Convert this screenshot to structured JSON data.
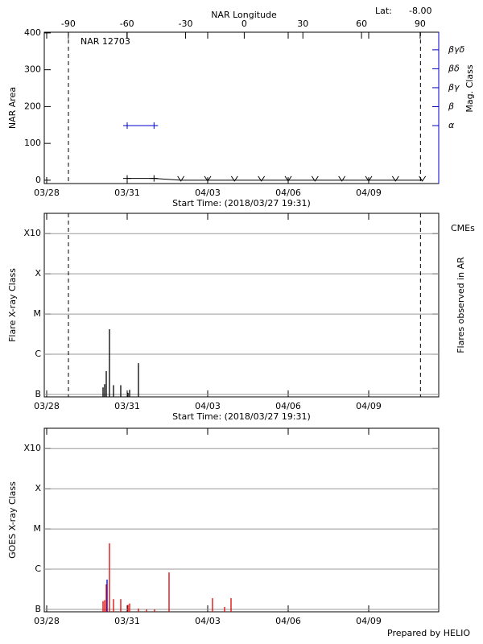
{
  "chart_data": [
    {
      "type": "line",
      "title": "NAR 12703",
      "annotations": [
        "Lat:",
        "-8.00"
      ],
      "ylabel": "NAR Area",
      "y2label": "Mag. Class",
      "x2label": "NAR Longitude",
      "xlabel": "Start Time: (2018/03/27 19:31)",
      "xlim": [
        -0.09,
        14.61
      ],
      "xticks": [
        {
          "value": 0,
          "label": "03/28"
        },
        {
          "value": 3,
          "label": "03/31"
        },
        {
          "value": 6,
          "label": "04/03"
        },
        {
          "value": 9,
          "label": "04/06"
        },
        {
          "value": 12,
          "label": "04/09"
        }
      ],
      "x2lim": [
        -102.3,
        99.5
      ],
      "x2ticks": [
        -90,
        -60,
        -30,
        0,
        30,
        60,
        90
      ],
      "ylim": [
        -9,
        402
      ],
      "yticks": [
        0,
        100,
        200,
        300,
        400
      ],
      "y2lim": [
        -2.06,
        5.93
      ],
      "y2ticks": [
        {
          "value": 1,
          "label": "α"
        },
        {
          "value": 2,
          "label": "β"
        },
        {
          "value": 3,
          "label": "βγ"
        },
        {
          "value": 4,
          "label": "βδ"
        },
        {
          "value": 5,
          "label": "βγδ"
        }
      ],
      "vlines": [
        0.81,
        13.93
      ],
      "series": [
        {
          "color": "#000000",
          "x": [
            3,
            4,
            5,
            6,
            7,
            8,
            9,
            10,
            11,
            12,
            13,
            14
          ],
          "values": [
            5,
            5,
            0,
            0,
            0,
            0,
            0,
            0,
            0,
            0,
            0,
            0
          ],
          "markers": [
            "+",
            "+",
            "v",
            "v",
            "v",
            "v",
            "v",
            "v",
            "v",
            "v",
            "v",
            "v"
          ]
        },
        {
          "color": "#0000cc",
          "axis": "y2",
          "x": [
            3,
            4
          ],
          "values": [
            1,
            1
          ],
          "markers": [
            "+",
            "+"
          ]
        }
      ]
    },
    {
      "type": "bar",
      "ylabel": "Flare X-ray Class",
      "y2label": "Flares observed in AR",
      "annotations": [
        "CMEs"
      ],
      "xlabel": "Start Time: (2018/03/27 19:31)",
      "xlim": [
        -0.09,
        14.61
      ],
      "xticks": [
        {
          "value": 0,
          "label": "03/28"
        },
        {
          "value": 3,
          "label": "03/31"
        },
        {
          "value": 6,
          "label": "04/03"
        },
        {
          "value": 9,
          "label": "04/06"
        },
        {
          "value": 12,
          "label": "04/09"
        }
      ],
      "log": true,
      "ylim": [
        8.7e-08,
        0.0032
      ],
      "yticks": [
        {
          "value": 1e-07,
          "label": "B"
        },
        {
          "value": 1e-06,
          "label": "C"
        },
        {
          "value": 1e-05,
          "label": "M"
        },
        {
          "value": 0.0001,
          "label": "X"
        },
        {
          "value": 0.001,
          "label": "X10"
        }
      ],
      "grid": true,
      "vlines": [
        0.81,
        13.93
      ],
      "series": [
        {
          "color": "#000000",
          "x": [
            2.1,
            2.16,
            2.22,
            2.34,
            2.49,
            2.76,
            3.03,
            3.09,
            3.42
          ],
          "values": [
            1.5e-07,
            1.8e-07,
            3.8e-07,
            4.2e-06,
            1.7e-07,
            1.7e-07,
            1.1e-07,
            1.3e-07,
            6e-07
          ]
        }
      ]
    },
    {
      "type": "bar",
      "ylabel": "GOES X-ray Class",
      "annotations": [
        "Prepared by HELIO"
      ],
      "xlim": [
        -0.09,
        14.61
      ],
      "xticks": [
        {
          "value": 0,
          "label": "03/28"
        },
        {
          "value": 3,
          "label": "03/31"
        },
        {
          "value": 6,
          "label": "04/03"
        },
        {
          "value": 9,
          "label": "04/06"
        },
        {
          "value": 12,
          "label": "04/09"
        }
      ],
      "log": true,
      "ylim": [
        8.7e-08,
        0.0032
      ],
      "yticks": [
        {
          "value": 1e-07,
          "label": "B"
        },
        {
          "value": 1e-06,
          "label": "C"
        },
        {
          "value": 1e-05,
          "label": "M"
        },
        {
          "value": 0.0001,
          "label": "X"
        },
        {
          "value": 0.001,
          "label": "X10"
        }
      ],
      "grid": true,
      "series": [
        {
          "color": "#0000cc",
          "x": [
            2.25
          ],
          "values": [
            5.5e-07
          ]
        },
        {
          "color": "#dd0000",
          "x": [
            2.1,
            2.16,
            2.22,
            2.34,
            2.49,
            2.76,
            3.03,
            3.09,
            3.42,
            3.72,
            4.02,
            4.56,
            6.18,
            6.63,
            6.87
          ],
          "values": [
            1.6e-07,
            1.7e-07,
            4.2e-07,
            4.4e-06,
            1.8e-07,
            1.8e-07,
            1.3e-07,
            1.4e-07,
            1.05e-07,
            1e-07,
            1e-07,
            8.3e-07,
            1.9e-07,
            1.15e-07,
            1.9e-07
          ]
        }
      ]
    }
  ]
}
